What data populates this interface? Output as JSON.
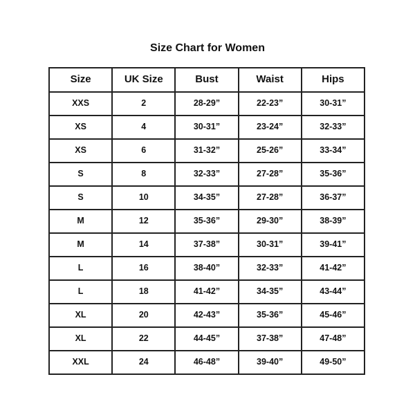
{
  "title": "Size Chart for Women",
  "headers": [
    "Size",
    "UK Size",
    "Bust",
    "Waist",
    "Hips"
  ],
  "rows": [
    [
      "XXS",
      "2",
      "28-29”",
      "22-23”",
      "30-31”"
    ],
    [
      "XS",
      "4",
      "30-31”",
      "23-24”",
      "32-33”"
    ],
    [
      "XS",
      "6",
      "31-32”",
      "25-26”",
      "33-34”"
    ],
    [
      "S",
      "8",
      "32-33”",
      "27-28”",
      "35-36”"
    ],
    [
      "S",
      "10",
      "34-35”",
      "27-28”",
      "36-37”"
    ],
    [
      "M",
      "12",
      "35-36”",
      "29-30”",
      "38-39”"
    ],
    [
      "M",
      "14",
      "37-38”",
      "30-31”",
      "39-41”"
    ],
    [
      "L",
      "16",
      "38-40”",
      "32-33”",
      "41-42”"
    ],
    [
      "L",
      "18",
      "41-42”",
      "34-35”",
      "43-44”"
    ],
    [
      "XL",
      "20",
      "42-43”",
      "35-36”",
      "45-46”"
    ],
    [
      "XL",
      "22",
      "44-45”",
      "37-38”",
      "47-48”"
    ],
    [
      "XXL",
      "24",
      "46-48”",
      "39-40”",
      "49-50”"
    ]
  ]
}
